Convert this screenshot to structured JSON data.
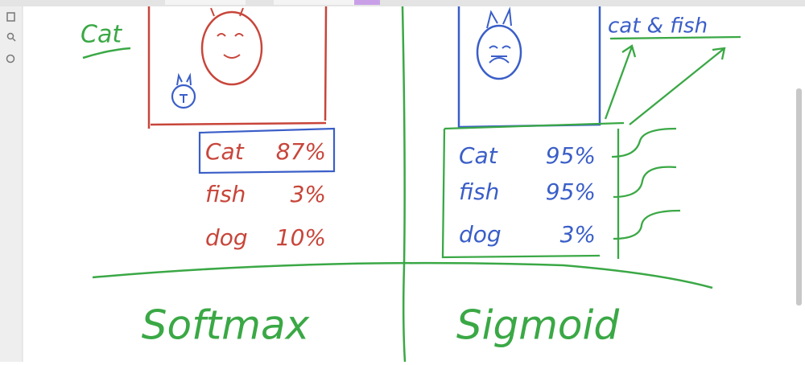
{
  "left_panel": {
    "label": "Cat",
    "rows": [
      {
        "name": "Cat",
        "value": "87%"
      },
      {
        "name": "fish",
        "value": "3%"
      },
      {
        "name": "dog",
        "value": "10%"
      }
    ],
    "caption": "Softmax"
  },
  "right_panel": {
    "label": "cat & fish",
    "rows": [
      {
        "name": "Cat",
        "value": "95%"
      },
      {
        "name": "fish",
        "value": "95%"
      },
      {
        "name": "dog",
        "value": "3%"
      }
    ],
    "caption": "Sigmoid"
  }
}
